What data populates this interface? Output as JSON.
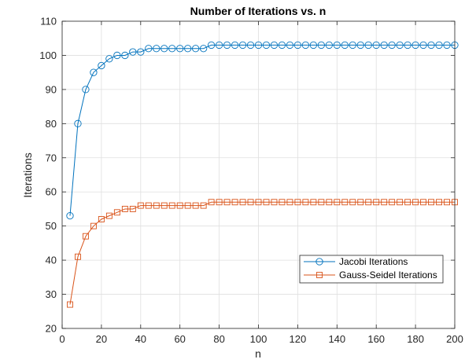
{
  "chart_data": {
    "type": "line",
    "title": "Number of Iterations vs. n",
    "xlabel": "n",
    "ylabel": "Iterations",
    "xlim": [
      0,
      200
    ],
    "ylim": [
      20,
      110
    ],
    "xticks": [
      0,
      20,
      40,
      60,
      80,
      100,
      120,
      140,
      160,
      180,
      200
    ],
    "yticks": [
      20,
      30,
      40,
      50,
      60,
      70,
      80,
      90,
      100,
      110
    ],
    "grid": true,
    "legend_position": "right",
    "x": [
      4,
      8,
      12,
      16,
      20,
      24,
      28,
      32,
      36,
      40,
      44,
      48,
      52,
      56,
      60,
      64,
      68,
      72,
      76,
      80,
      84,
      88,
      92,
      96,
      100,
      104,
      108,
      112,
      116,
      120,
      124,
      128,
      132,
      136,
      140,
      144,
      148,
      152,
      156,
      160,
      164,
      168,
      172,
      176,
      180,
      184,
      188,
      192,
      196,
      200
    ],
    "series": [
      {
        "name": "Jacobi Iterations",
        "color": "#0072BD",
        "marker": "circle",
        "values": [
          53,
          80,
          90,
          95,
          97,
          99,
          100,
          100,
          101,
          101,
          102,
          102,
          102,
          102,
          102,
          102,
          102,
          102,
          103,
          103,
          103,
          103,
          103,
          103,
          103,
          103,
          103,
          103,
          103,
          103,
          103,
          103,
          103,
          103,
          103,
          103,
          103,
          103,
          103,
          103,
          103,
          103,
          103,
          103,
          103,
          103,
          103,
          103,
          103,
          103
        ]
      },
      {
        "name": "Gauss-Seidel Iterations",
        "color": "#D95319",
        "marker": "square",
        "values": [
          27,
          41,
          47,
          50,
          52,
          53,
          54,
          55,
          55,
          56,
          56,
          56,
          56,
          56,
          56,
          56,
          56,
          56,
          57,
          57,
          57,
          57,
          57,
          57,
          57,
          57,
          57,
          57,
          57,
          57,
          57,
          57,
          57,
          57,
          57,
          57,
          57,
          57,
          57,
          57,
          57,
          57,
          57,
          57,
          57,
          57,
          57,
          57,
          57,
          57
        ]
      }
    ]
  }
}
